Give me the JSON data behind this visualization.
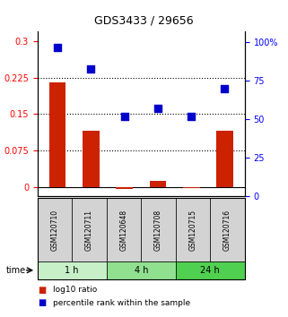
{
  "title": "GDS3433 / 29656",
  "samples": [
    "GSM120710",
    "GSM120711",
    "GSM120648",
    "GSM120708",
    "GSM120715",
    "GSM120716"
  ],
  "log10_ratio": [
    0.215,
    0.115,
    -0.005,
    0.012,
    -0.003,
    0.115
  ],
  "percentile_rank": [
    97,
    83,
    52,
    57,
    52,
    70
  ],
  "groups": [
    {
      "label": "1 h",
      "indices": [
        0,
        1
      ],
      "color": "#c8f0c8"
    },
    {
      "label": "4 h",
      "indices": [
        2,
        3
      ],
      "color": "#90e090"
    },
    {
      "label": "24 h",
      "indices": [
        4,
        5
      ],
      "color": "#50d050"
    }
  ],
  "bar_color": "#cc2200",
  "scatter_color": "#0000cc",
  "ylim_left": [
    -0.02,
    0.32
  ],
  "ylim_right": [
    0,
    107
  ],
  "yticks_left": [
    0,
    0.075,
    0.15,
    0.225,
    0.3
  ],
  "yticks_right": [
    0,
    25,
    50,
    75,
    100
  ],
  "ytick_labels_right": [
    "0",
    "25",
    "50",
    "75",
    "100%"
  ],
  "bg_color": "#d3d3d3",
  "time_label": "time",
  "legend_bar_label": "log10 ratio",
  "legend_scatter_label": "percentile rank within the sample"
}
